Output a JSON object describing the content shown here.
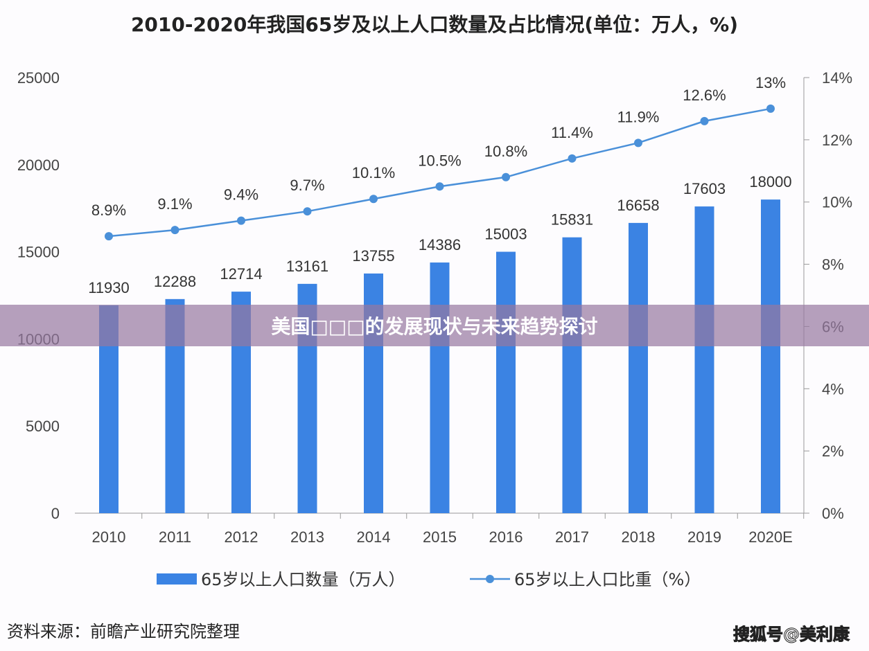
{
  "chart_data": {
    "type": "bar",
    "title": "2010-2020年我国65岁及以上人口数量及占比情况(单位：万人，%)",
    "categories": [
      "2010",
      "2011",
      "2012",
      "2013",
      "2014",
      "2015",
      "2016",
      "2017",
      "2018",
      "2019",
      "2020E"
    ],
    "series": [
      {
        "name": "65岁以上人口数量（万人）",
        "type": "bar",
        "axis": "left",
        "color": "#3b83e3",
        "values": [
          11930,
          12288,
          12714,
          13161,
          13755,
          14386,
          15003,
          15831,
          16658,
          17603,
          18000
        ]
      },
      {
        "name": "65岁以上人口比重（%）",
        "type": "line",
        "axis": "right",
        "color": "#4a90d9",
        "values": [
          8.9,
          9.1,
          9.4,
          9.7,
          10.1,
          10.5,
          10.8,
          11.4,
          11.9,
          12.6,
          13
        ],
        "labels": [
          "8.9%",
          "9.1%",
          "9.4%",
          "9.7%",
          "10.1%",
          "10.5%",
          "10.8%",
          "11.4%",
          "11.9%",
          "12.6%",
          "13%"
        ]
      }
    ],
    "ylim": [
      0,
      25000
    ],
    "yticks": [
      "0",
      "5000",
      "10000",
      "15000",
      "20000",
      "25000"
    ],
    "y2lim": [
      0,
      14
    ],
    "y2ticks": [
      "0%",
      "2%",
      "4%",
      "6%",
      "8%",
      "10%",
      "12%",
      "14%"
    ],
    "legend_position": "bottom"
  },
  "banner": "美国□□□的发展现状与未来趋势探讨",
  "source": "资料来源：前瞻产业研究院整理",
  "credit": "搜狐号@美利康"
}
